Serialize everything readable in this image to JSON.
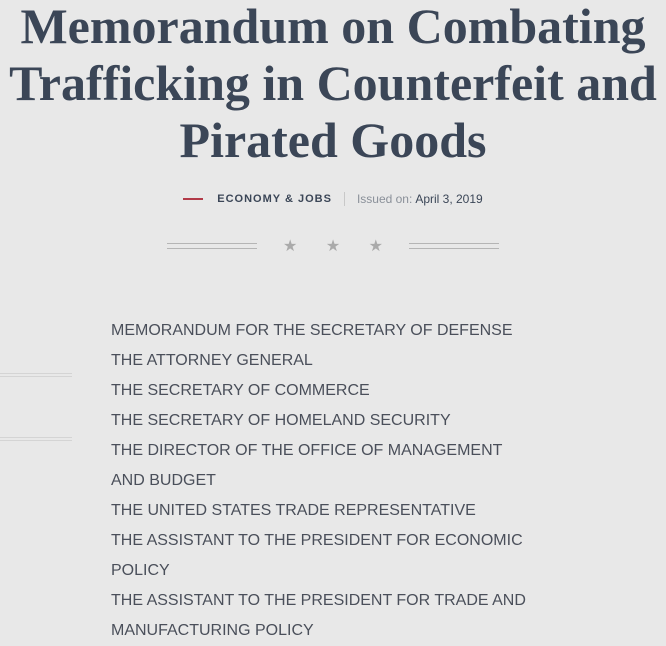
{
  "title": [
    "Memorandum on Combating",
    "Trafficking in Counterfeit and",
    "Pirated Goods"
  ],
  "meta": {
    "category": "ECONOMY & JOBS",
    "issued_label": "Issued on:",
    "date": "April 3, 2019"
  },
  "divider": {
    "stars": "★ ★ ★"
  },
  "addressees": [
    "MEMORANDUM FOR THE SECRETARY OF DEFENSE",
    "THE ATTORNEY GENERAL",
    "THE SECRETARY OF COMMERCE",
    "THE SECRETARY OF HOMELAND SECURITY",
    "THE DIRECTOR OF THE OFFICE OF MANAGEMENT",
    "AND BUDGET",
    "THE UNITED STATES TRADE REPRESENTATIVE",
    "THE ASSISTANT TO THE PRESIDENT FOR ECONOMIC",
    "POLICY",
    "THE ASSISTANT TO THE PRESIDENT FOR TRADE AND",
    "MANUFACTURING POLICY"
  ],
  "colors": {
    "title": "#3b4657",
    "accent": "#b23a48",
    "background": "#e8e8e8"
  }
}
